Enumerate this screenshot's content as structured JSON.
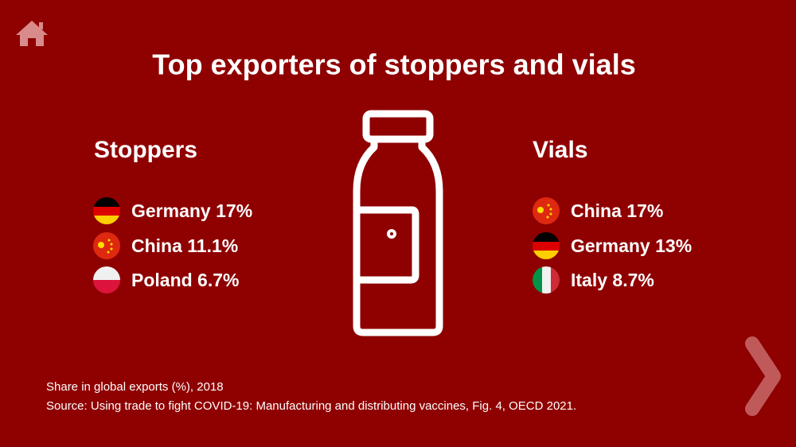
{
  "header": {
    "title": "Top exporters of stoppers and vials"
  },
  "columns": [
    {
      "heading": "Stoppers",
      "items": [
        "Germany 17%",
        "China 11.1%",
        "Poland 6.7%"
      ]
    },
    {
      "heading": "Vials",
      "items": [
        "China 17%",
        "Germany 13%",
        "Italy 8.7%"
      ]
    }
  ],
  "footer": {
    "note": "Share in global exports (%), 2018",
    "source": "Source: Using trade to fight COVID-19: Manufacturing and distributing vaccines, Fig. 4, OECD 2021."
  }
}
